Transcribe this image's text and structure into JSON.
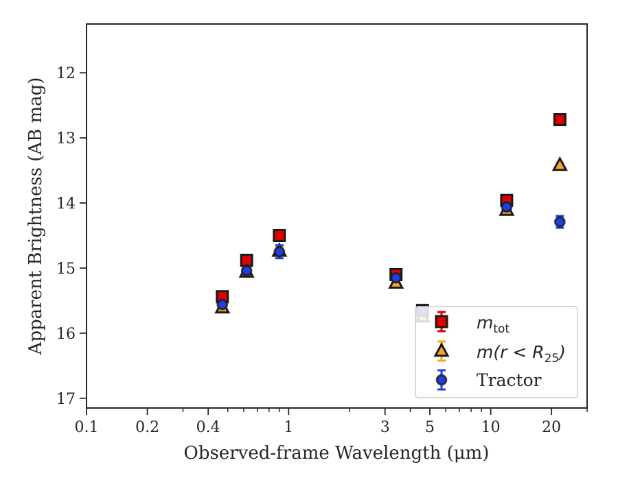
{
  "chart_data": {
    "type": "scatter",
    "title": "",
    "xlabel": "Observed-frame Wavelength (μm)",
    "ylabel": "Apparent Brightness (AB mag)",
    "x_scale": "log",
    "xlim": [
      0.1,
      30
    ],
    "ylim": [
      17.15,
      11.25
    ],
    "y_inverted": true,
    "x_ticks": [
      0.1,
      0.2,
      0.4,
      1,
      3,
      5,
      10,
      20
    ],
    "x_tick_labels": [
      "0.1",
      "0.2",
      "0.4",
      "1",
      "3",
      "5",
      "10",
      "20"
    ],
    "y_ticks": [
      12,
      13,
      14,
      15,
      16,
      17
    ],
    "y_tick_labels": [
      "12",
      "13",
      "14",
      "15",
      "16",
      "17"
    ],
    "grid": false,
    "legend_position": "lower-right",
    "series": [
      {
        "label": "m_tot",
        "legend_main": "m",
        "legend_sub": "tot",
        "marker": "square",
        "color": "#e00000",
        "edge": "#1a1a1a",
        "errcolor": "#e00000",
        "points": [
          {
            "x": 0.47,
            "y": 15.44,
            "err": 0.07
          },
          {
            "x": 0.62,
            "y": 14.88,
            "err": 0.07
          },
          {
            "x": 0.9,
            "y": 14.5,
            "err": 0.08
          },
          {
            "x": 3.4,
            "y": 15.1,
            "err": 0.06
          },
          {
            "x": 4.6,
            "y": 15.65,
            "err": 0.06
          },
          {
            "x": 12.0,
            "y": 13.96,
            "err": 0.05
          },
          {
            "x": 22.0,
            "y": 12.72,
            "err": 0.05
          }
        ]
      },
      {
        "label": "m(r < R25)",
        "legend_main": "m(r < R",
        "legend_sub": "25",
        "legend_tail": ")",
        "marker": "triangle",
        "color": "#f5a623",
        "edge": "#1a1a1a",
        "errcolor": "#f5a623",
        "points": [
          {
            "x": 0.47,
            "y": 15.61,
            "err": 0.04
          },
          {
            "x": 0.62,
            "y": 15.06,
            "err": 0.04
          },
          {
            "x": 0.9,
            "y": 14.74,
            "err": 0.06
          },
          {
            "x": 3.4,
            "y": 15.23,
            "err": 0.04
          },
          {
            "x": 4.6,
            "y": 15.75,
            "err": 0.04
          },
          {
            "x": 12.0,
            "y": 14.11,
            "err": 0.04
          },
          {
            "x": 22.0,
            "y": 13.42,
            "err": 0.04
          }
        ]
      },
      {
        "label": "Tractor",
        "marker": "circle",
        "color": "#1f3fe0",
        "edge": "#1a1a1a",
        "errcolor": "#1f3fe0",
        "points": [
          {
            "x": 0.47,
            "y": 15.56,
            "err": 0.05
          },
          {
            "x": 0.62,
            "y": 15.04,
            "err": 0.05
          },
          {
            "x": 0.9,
            "y": 14.75,
            "err": 0.1
          },
          {
            "x": 3.4,
            "y": 15.15,
            "err": 0.05
          },
          {
            "x": 4.6,
            "y": 15.66,
            "err": 0.05
          },
          {
            "x": 12.0,
            "y": 14.06,
            "err": 0.06
          },
          {
            "x": 22.0,
            "y": 14.29,
            "err": 0.09
          }
        ]
      }
    ]
  }
}
